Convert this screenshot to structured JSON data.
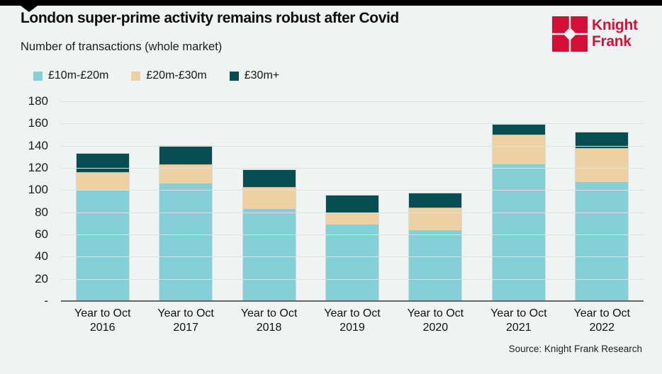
{
  "page": {
    "background": "#eff3f1",
    "top_bar_color": "#000000"
  },
  "header": {
    "title": "London super-prime activity remains robust after Covid",
    "subtitle": "Number  of transactions (whole market)"
  },
  "logo": {
    "brand_line1": "Knight",
    "brand_line2": "Frank",
    "color": "#d51038"
  },
  "chart_data": {
    "type": "bar",
    "stacked": true,
    "title": "London super-prime activity remains robust after Covid",
    "subtitle": "Number of transactions (whole market)",
    "categories": [
      "Year to Oct\n2016",
      "Year to Oct\n2017",
      "Year to Oct\n2018",
      "Year to Oct\n2019",
      "Year to Oct\n2020",
      "Year to Oct\n2021",
      "Year to Oct\n2022"
    ],
    "series": [
      {
        "name": "£10m-£20m",
        "color": "#84d0d6",
        "values": [
          100,
          106,
          83,
          69,
          64,
          123,
          107
        ]
      },
      {
        "name": "£20m-£30m",
        "color": "#edd1a5",
        "values": [
          16,
          17,
          20,
          11,
          20,
          27,
          31
        ]
      },
      {
        "name": "£30m+",
        "color": "#074d51",
        "values": [
          17,
          17,
          15,
          15,
          13,
          9,
          14
        ]
      }
    ],
    "totals": [
      133,
      140,
      118,
      95,
      97,
      159,
      152
    ],
    "ylim": [
      0,
      180
    ],
    "ytick_step": 20,
    "ytick_labels_top_to_bottom": [
      "180",
      "160",
      "140",
      "120",
      "100",
      "80",
      "60",
      "40",
      "20",
      "-"
    ],
    "grid": true,
    "gridline_color": "#dce2e0",
    "baseline_color": "#5e6966",
    "legend_position": "top-left"
  },
  "footer": {
    "source": "Source: Knight Frank Research"
  }
}
